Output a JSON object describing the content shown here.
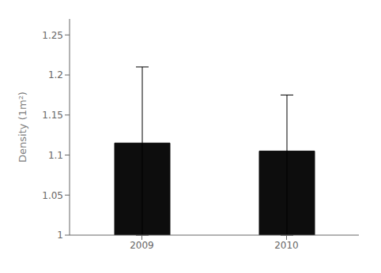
{
  "chart_data": {
    "type": "bar",
    "categories": [
      "2009",
      "2010"
    ],
    "values": [
      1.115,
      1.105
    ],
    "errors_lower": [
      0.115,
      0.105
    ],
    "errors_upper": [
      0.095,
      0.07
    ],
    "color": "#0d0d0d",
    "ylabel": "Density (1m²)",
    "ylim": [
      1.0,
      1.27
    ],
    "yticks": [
      1.0,
      1.05,
      1.1,
      1.15,
      1.2,
      1.25
    ],
    "grid": false
  }
}
